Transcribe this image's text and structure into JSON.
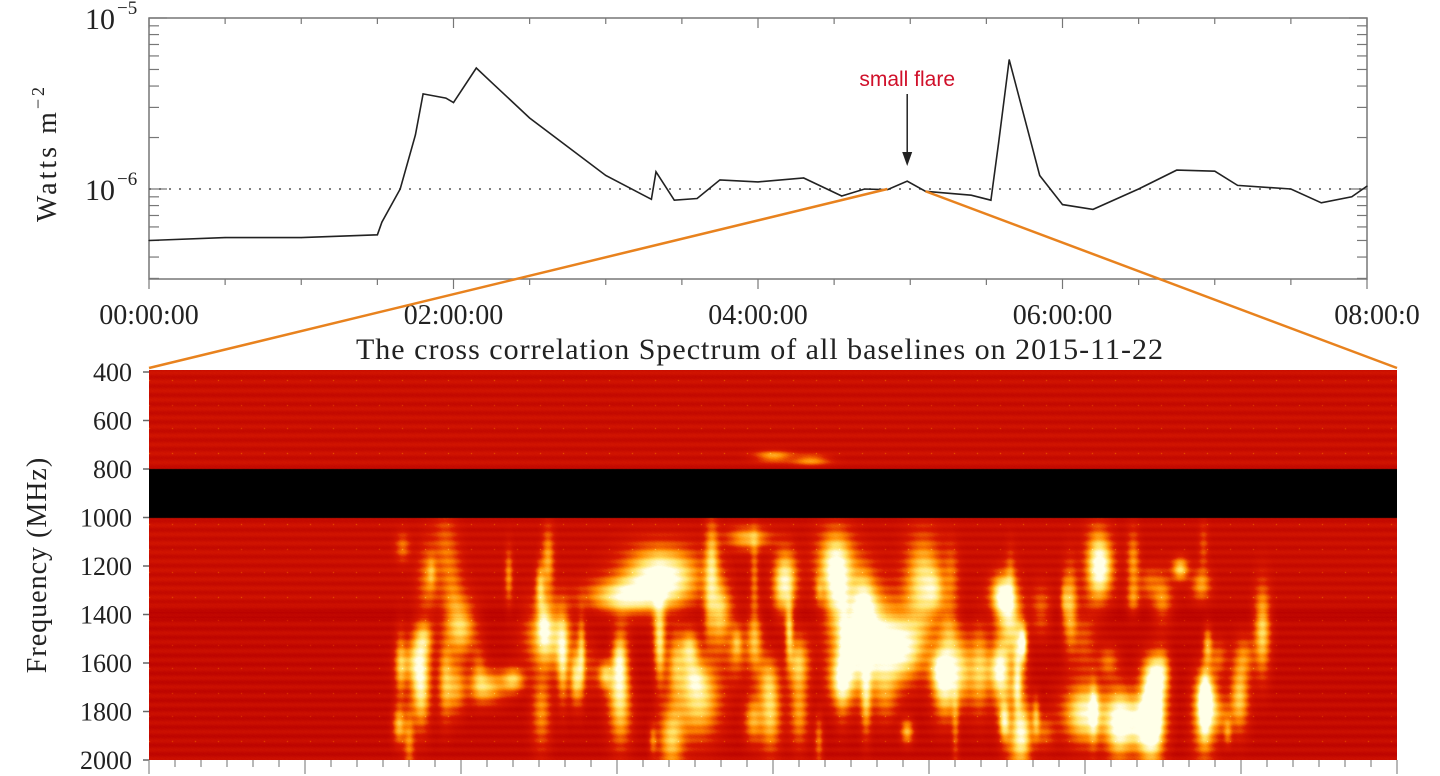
{
  "chart_data": [
    {
      "type": "line",
      "title": "",
      "xlabel": "",
      "ylabel": "Watts m",
      "ylabel_exponent": "−2",
      "yscale": "log",
      "ylim": [
        3e-07,
        1e-05
      ],
      "xlim_hours": [
        0,
        8
      ],
      "x_tick_labels": [
        "00:00:00",
        "02:00:00",
        "04:00:00",
        "06:00:00",
        "08:00:0"
      ],
      "y_tick_labels": [
        {
          "base": "10",
          "exp": "−5",
          "value": 1e-05
        },
        {
          "base": "10",
          "exp": "−6",
          "value": 1e-06
        }
      ],
      "reference_line": {
        "value": 1e-06,
        "style": "dotted"
      },
      "line_color": "#222222",
      "series": [
        {
          "x_hours": [
            0,
            0.5,
            1.0,
            1.5,
            1.53,
            1.65,
            1.75,
            1.8,
            1.95,
            2.0,
            2.15,
            2.25,
            2.5,
            3.0,
            3.3,
            3.33,
            3.45,
            3.6,
            3.75,
            4.0,
            4.3,
            4.55,
            4.7,
            4.85,
            4.98,
            5.1,
            5.4,
            5.53,
            5.58,
            5.65,
            5.72,
            5.85,
            6.0,
            6.2,
            6.5,
            6.75,
            7.0,
            7.15,
            7.5,
            7.7,
            7.9,
            8.0
          ],
          "values": [
            5e-07,
            5.2e-07,
            5.2e-07,
            5.4e-07,
            6.4e-07,
            1e-06,
            2.07e-06,
            3.6e-06,
            3.4e-06,
            3.2e-06,
            5.1e-06,
            4.2e-06,
            2.6e-06,
            1.2e-06,
            8.7e-07,
            1.26e-06,
            8.6e-07,
            8.8e-07,
            1.13e-06,
            1.1e-06,
            1.16e-06,
            9.1e-07,
            1e-06,
            9.9e-07,
            1.11e-06,
            9.7e-07,
            9.2e-07,
            8.6e-07,
            1.86e-06,
            5.7e-06,
            3.3e-06,
            1.2e-06,
            8.1e-07,
            7.6e-07,
            1e-06,
            1.29e-06,
            1.27e-06,
            1.05e-06,
            1e-06,
            8.3e-07,
            9e-07,
            1.04e-06
          ]
        }
      ],
      "annotation": {
        "text": "small flare",
        "x_hours": 4.98,
        "color": "#d0102a"
      },
      "zoom_lines": {
        "color": "#e8821e",
        "from_hours": [
          4.85,
          5.1
        ]
      }
    },
    {
      "type": "heatmap",
      "title": "The cross correlation Spectrum of all baselines on 2015-11-22",
      "xlabel": "",
      "ylabel": "Frequency (MHz)",
      "ylim": [
        400,
        2000
      ],
      "y_tick_labels": [
        "400",
        "600",
        "800",
        "1000",
        "1200",
        "1400",
        "1600",
        "1800",
        "2000"
      ],
      "masked_band_mhz": [
        800,
        1000
      ],
      "colorscale": [
        "#b80000",
        "#d81a00",
        "#ff8a00",
        "#ffe060",
        "#ffffe8"
      ]
    }
  ]
}
